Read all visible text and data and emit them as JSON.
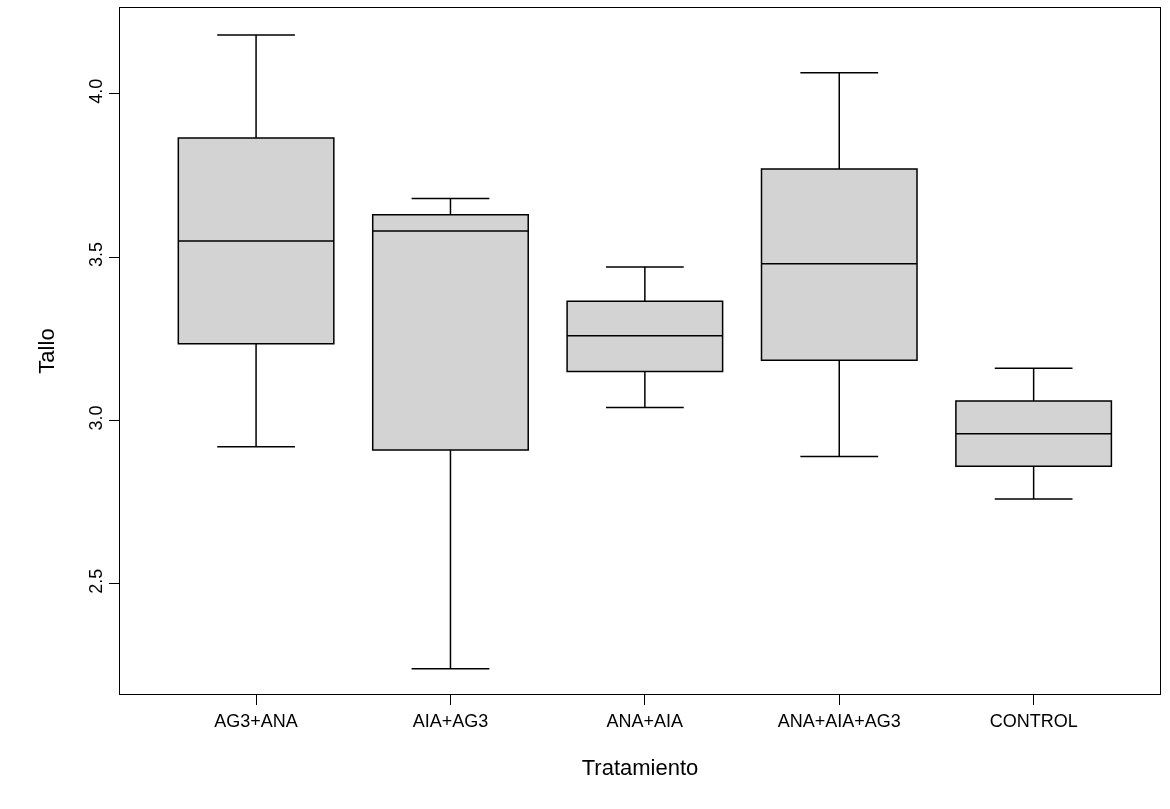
{
  "chart_data": {
    "type": "box",
    "xlabel": "Tratamiento",
    "ylabel": "Tallo",
    "categories": [
      "AG3+ANA",
      "AIA+AG3",
      "ANA+AIA",
      "ANA+AIA+AG3",
      "CONTROL"
    ],
    "color": "#d3d3d3",
    "boxes": [
      {
        "low": 2.92,
        "q1": 3.235,
        "median": 3.55,
        "q3": 3.865,
        "high": 4.18
      },
      {
        "low": 2.24,
        "q1": 2.91,
        "median": 3.58,
        "q3": 3.63,
        "high": 3.68
      },
      {
        "low": 3.04,
        "q1": 3.15,
        "median": 3.26,
        "q3": 3.365,
        "high": 3.47
      },
      {
        "low": 2.89,
        "q1": 3.185,
        "median": 3.48,
        "q3": 3.77,
        "high": 4.065
      },
      {
        "low": 2.76,
        "q1": 2.86,
        "median": 2.96,
        "q3": 3.06,
        "high": 3.16
      }
    ],
    "ylim": [
      2.163,
      4.263
    ],
    "yticks": [
      2.5,
      {
        "value": 3,
        "label": "3.0"
      },
      3.5,
      {
        "value": 4,
        "label": "4.0"
      }
    ],
    "grid": false,
    "legend": false
  }
}
